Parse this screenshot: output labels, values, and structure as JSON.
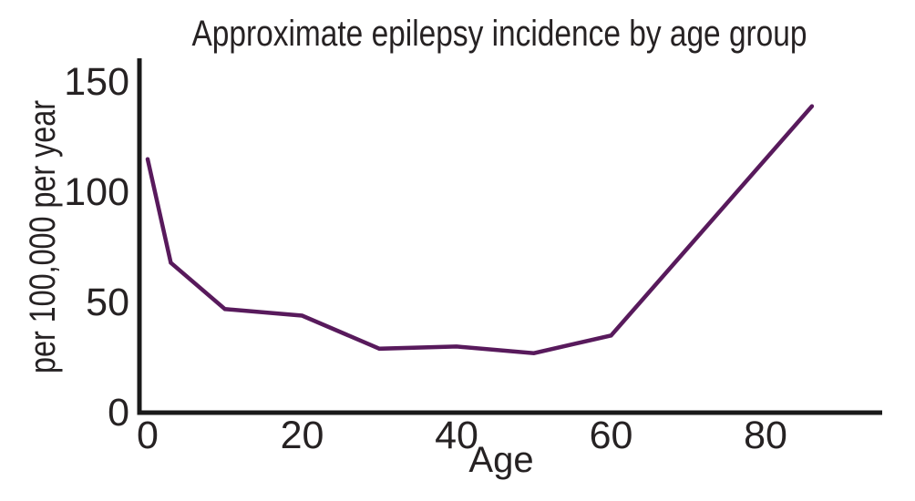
{
  "figure": {
    "background": "#ffffff"
  },
  "chart_data": {
    "type": "line",
    "title": "Approximate epilepsy incidence by age group",
    "xlabel": "Age",
    "ylabel": "per 100,000 per year",
    "x_ticks": [
      0,
      20,
      40,
      60,
      80
    ],
    "y_ticks": [
      0,
      50,
      100,
      150
    ],
    "xlim": [
      0,
      95
    ],
    "ylim": [
      0,
      160
    ],
    "grid": false,
    "legend": "none",
    "series": [
      {
        "name": "epilepsy incidence per 100,000 per year",
        "x": [
          0,
          3,
          10,
          20,
          30,
          40,
          50,
          60,
          86
        ],
        "y": [
          115,
          68,
          47,
          44,
          29,
          30,
          27,
          35,
          139
        ]
      }
    ],
    "line_color": "#581a5c",
    "axis_color": "#1a1a1a",
    "text_color": "#262223"
  }
}
